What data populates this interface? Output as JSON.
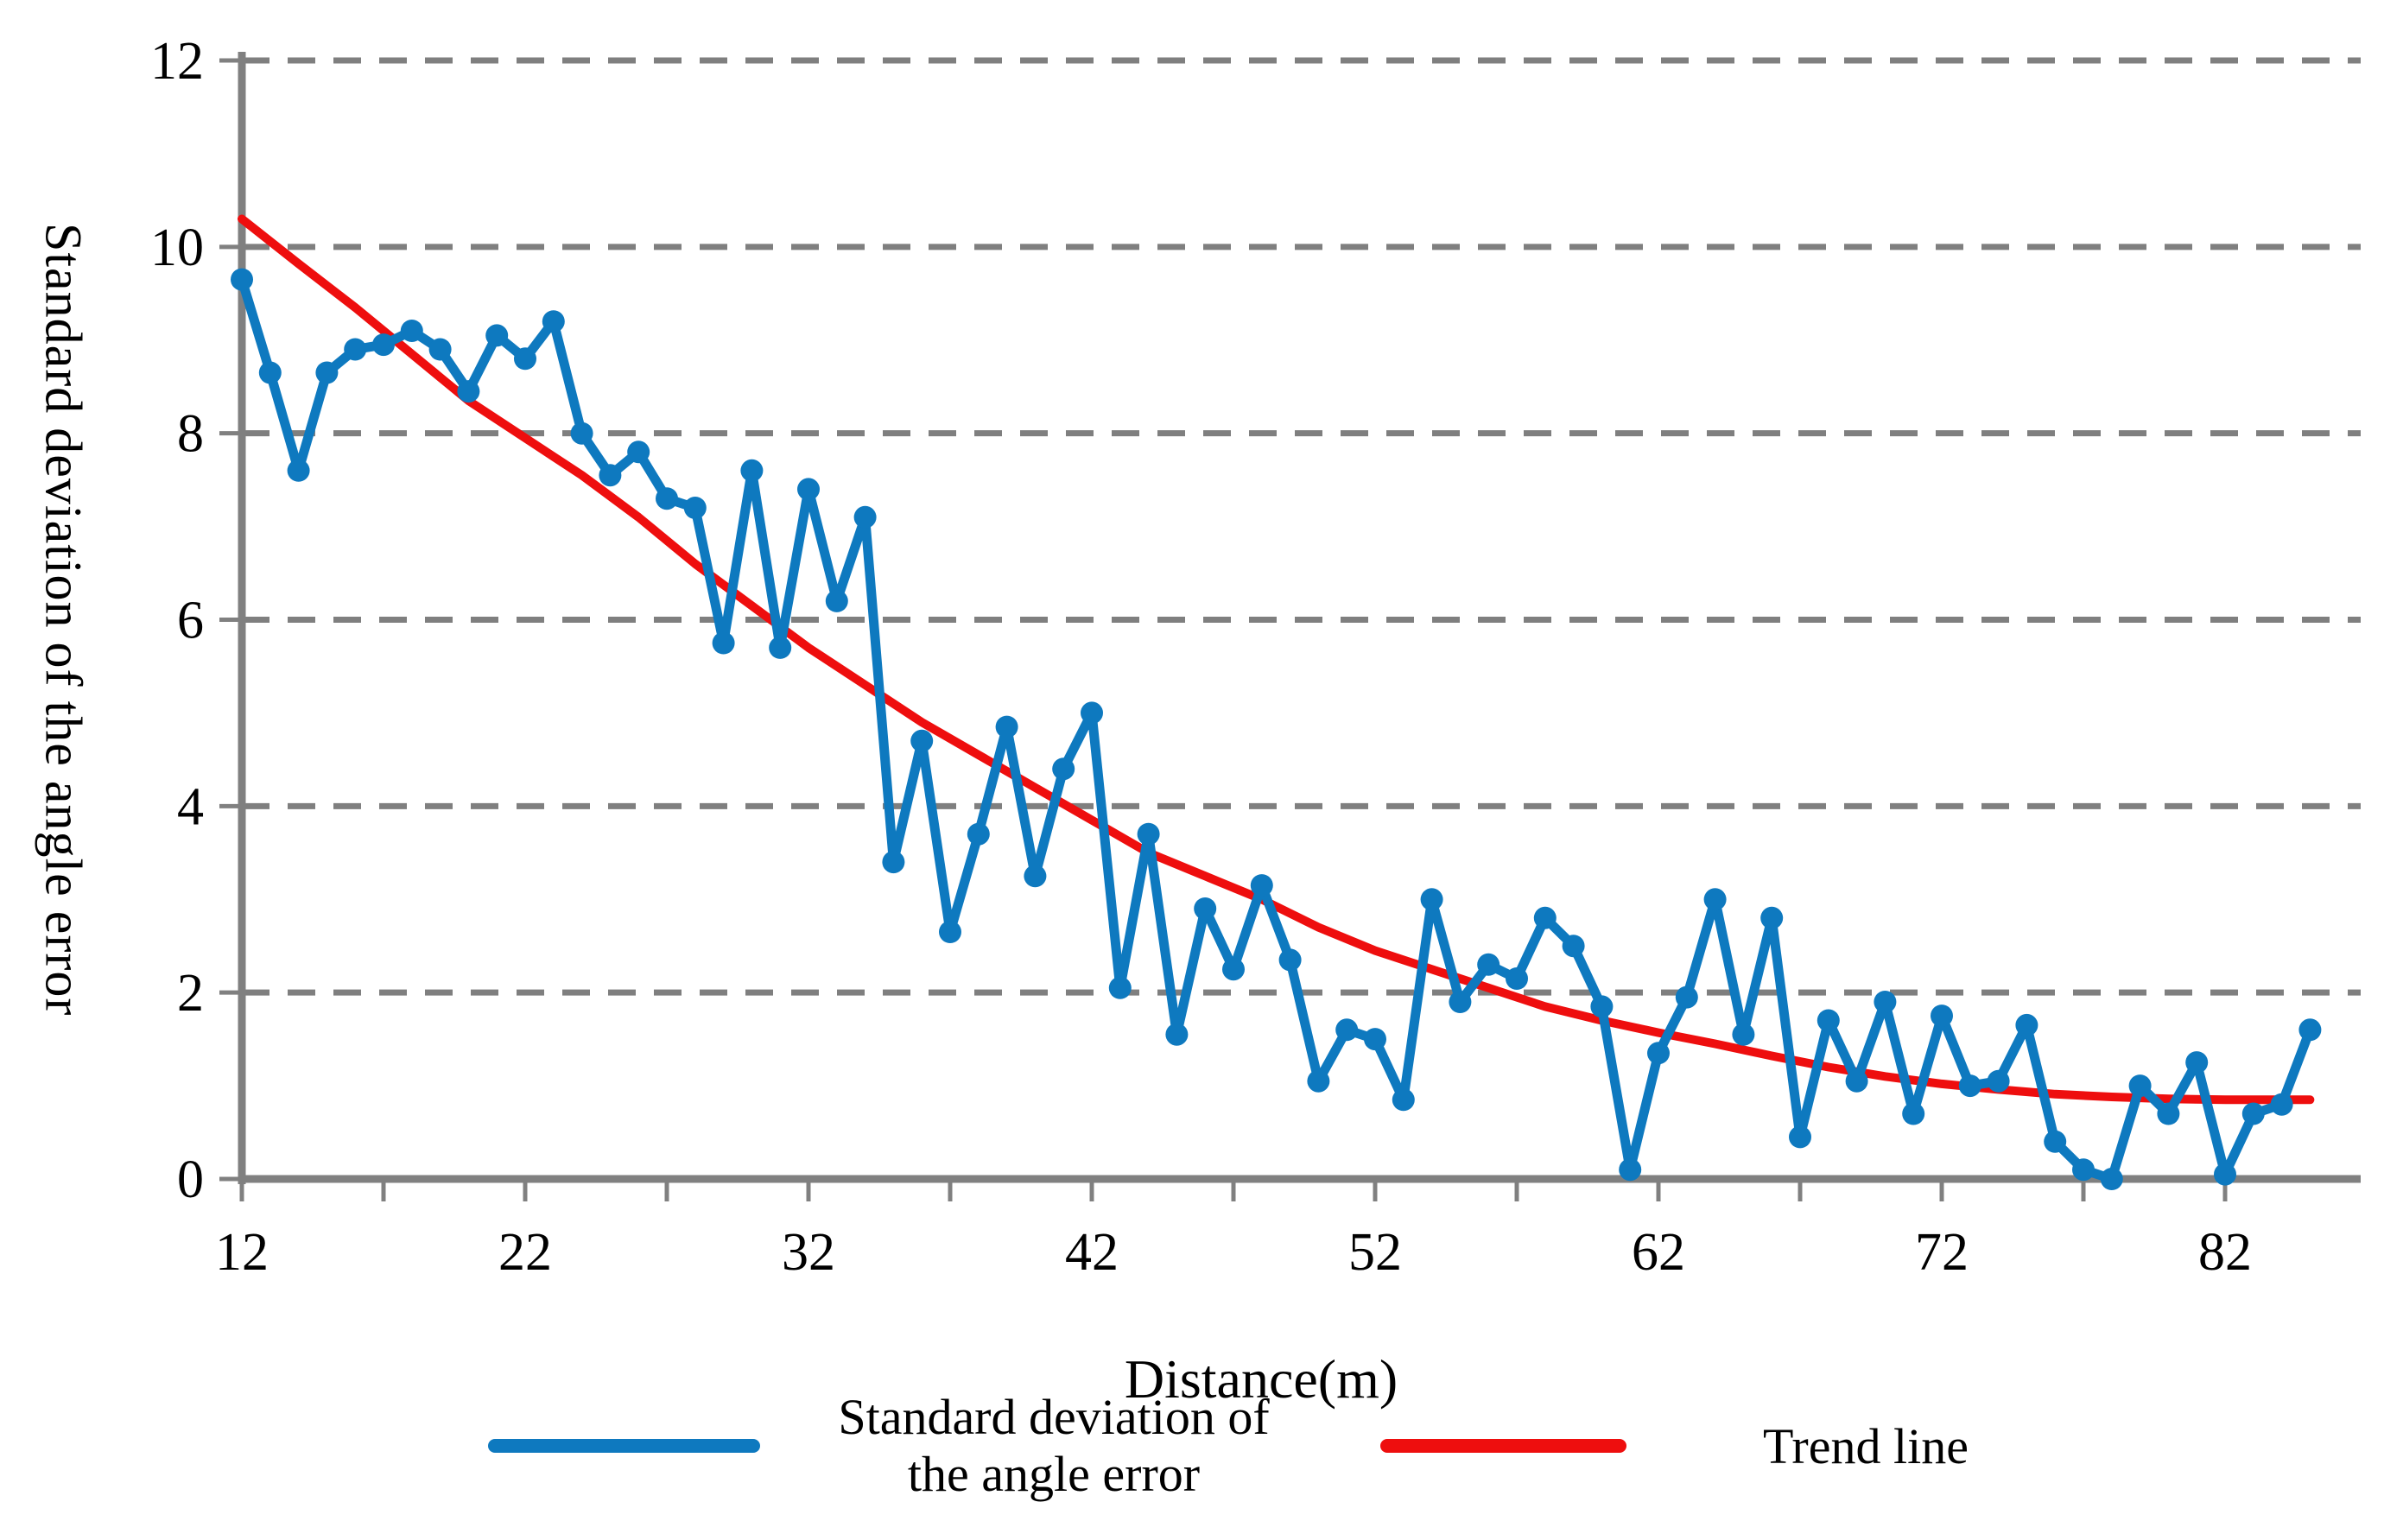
{
  "figure": {
    "y_axis_title": "Standard deviation of the angle error",
    "x_axis_title": "Distance(m)",
    "legend_stddev_line1": "Standard deviation of",
    "legend_stddev_line2": "the angle error",
    "legend_trend": "Trend line"
  },
  "colors": {
    "series_blue": "#0E79BF",
    "trend_red": "#EE0E0E",
    "grid_gray": "#7F7F7F",
    "axis_gray": "#808080",
    "text_black": "#000000"
  },
  "chart_data": {
    "type": "line",
    "title": "",
    "xlabel": "Distance(m)",
    "ylabel": "Standard deviation of the angle error",
    "xlim": [
      12,
      85
    ],
    "ylim": [
      0,
      12
    ],
    "x_ticks": [
      12,
      22,
      32,
      42,
      52,
      62,
      72,
      82
    ],
    "x_minor_tick_step": 5,
    "y_ticks": [
      0,
      2,
      4,
      6,
      8,
      10,
      12
    ],
    "grid": "horizontal-dashed",
    "legend_position": "bottom",
    "series": [
      {
        "name": "Standard deviation of the angle error",
        "color": "#0E79BF",
        "marker": "circle",
        "x_start": 12,
        "x_step": 1,
        "values": [
          9.65,
          8.65,
          7.6,
          8.65,
          8.9,
          8.95,
          9.1,
          8.9,
          8.45,
          9.05,
          8.8,
          9.2,
          8.0,
          7.55,
          7.8,
          7.3,
          7.2,
          5.75,
          7.6,
          5.7,
          7.4,
          6.2,
          7.1,
          3.4,
          4.7,
          2.65,
          3.7,
          4.85,
          3.25,
          4.4,
          5.0,
          2.05,
          3.7,
          1.55,
          2.9,
          2.25,
          3.15,
          2.35,
          1.05,
          1.6,
          1.5,
          0.85,
          3.0,
          1.9,
          2.3,
          2.15,
          2.8,
          2.5,
          1.85,
          0.1,
          1.35,
          1.95,
          3.0,
          1.55,
          2.8,
          0.45,
          1.7,
          1.05,
          1.9,
          0.7,
          1.75,
          1.0,
          1.05,
          1.65,
          0.4,
          0.1,
          0.0,
          1.0,
          0.7,
          1.25,
          0.05,
          0.7,
          0.8,
          1.6
        ]
      },
      {
        "name": "Trend line",
        "color": "#EE0E0E",
        "marker": "none",
        "points": [
          [
            12,
            10.3
          ],
          [
            14,
            9.82
          ],
          [
            16,
            9.35
          ],
          [
            18,
            8.85
          ],
          [
            20,
            8.35
          ],
          [
            22,
            7.95
          ],
          [
            24,
            7.55
          ],
          [
            26,
            7.1
          ],
          [
            28,
            6.6
          ],
          [
            30,
            6.15
          ],
          [
            32,
            5.7
          ],
          [
            34,
            5.3
          ],
          [
            36,
            4.9
          ],
          [
            38,
            4.55
          ],
          [
            40,
            4.2
          ],
          [
            42,
            3.85
          ],
          [
            44,
            3.5
          ],
          [
            46,
            3.25
          ],
          [
            48,
            3.0
          ],
          [
            50,
            2.7
          ],
          [
            52,
            2.45
          ],
          [
            54,
            2.25
          ],
          [
            56,
            2.05
          ],
          [
            58,
            1.85
          ],
          [
            60,
            1.7
          ],
          [
            62,
            1.57
          ],
          [
            64,
            1.45
          ],
          [
            66,
            1.32
          ],
          [
            68,
            1.2
          ],
          [
            70,
            1.1
          ],
          [
            72,
            1.02
          ],
          [
            74,
            0.96
          ],
          [
            76,
            0.91
          ],
          [
            78,
            0.88
          ],
          [
            80,
            0.86
          ],
          [
            82,
            0.85
          ],
          [
            85,
            0.85
          ]
        ]
      }
    ]
  }
}
